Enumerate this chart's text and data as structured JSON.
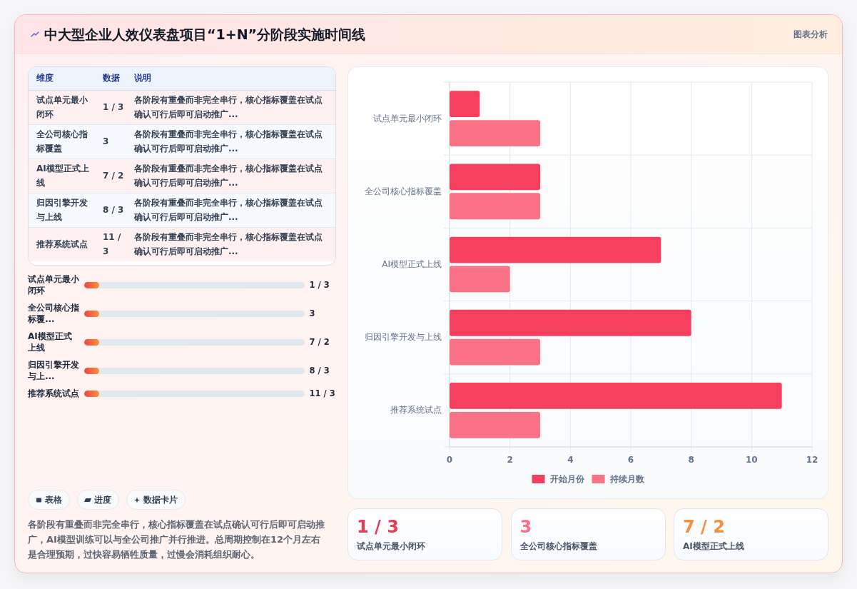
{
  "chart_data": [
    {
      "type": "other",
      "title": "中大型企业人效仪表盘项目“1+N”分阶段实施时间线",
      "annotations": [
        "图表分析"
      ]
    },
    {
      "type": "other",
      "categories": [
        "试点单元最小闭环",
        "全公司核心指标覆盖",
        "AI模型正式上线",
        "归因引擎开发与上线",
        "推荐系统试点"
      ],
      "value_labels": [
        "1 / 3",
        "3",
        "7 / 2",
        "8 / 3",
        "11 / 3"
      ],
      "annotations": [
        "维度",
        "数据",
        "说明",
        "各阶段有重叠而非完全串行，核心指标覆盖在试点确认可行后即可启动推广...",
        "各阶段有重叠而非完全串行，核心指标覆盖在试点确认可行后即可启动推广...",
        "各阶段有重叠而非完全串行，核心指标覆盖在试点确认可行后即可启动推广...",
        "各阶段有重叠而非完全串行，核心指标覆盖在试点确认可行后即可启动推广...",
        "各阶段有重叠而非完全串行，核心指标覆盖在试点确认可行后即可启动推广..."
      ]
    },
    {
      "type": "bar",
      "orientation": "horizontal",
      "categories": [
        "试点单元最小闭环",
        "全公司核心指标覆盖",
        "AI模型正式上线",
        "归因引擎开发与上线",
        "推荐系统试点"
      ],
      "series": [
        {
          "name": "开始月份",
          "color": "#f43f5e",
          "values": [
            1,
            3,
            7,
            8,
            11
          ]
        },
        {
          "name": "持续月数",
          "color": "#fb7185",
          "values": [
            3,
            3,
            2,
            3,
            3
          ]
        }
      ],
      "xlim": [
        0,
        12
      ],
      "xticks": [
        0,
        2,
        4,
        6,
        8,
        10,
        12
      ],
      "grid": true,
      "legend": "bottom"
    },
    {
      "type": "other",
      "categories": [
        "试点单元最小闭环",
        "全公司核心指标覆...",
        "AI模型正式上线",
        "归因引擎开发与上...",
        "推荐系统试点"
      ],
      "value_labels": [
        "1 / 3",
        "3",
        "7 / 2",
        "8 / 3",
        "11 / 3"
      ]
    },
    {
      "type": "other",
      "annotations": [
        "表格",
        "进度",
        "数据卡片",
        "各阶段有重叠而非完全串行，核心指标覆盖在试点确认可行后即可启动推广，AI模型训练可以与全公司推广并行推进。总周期控制在12个月左右是合理预期，过快容易牺牲质量，过慢会消耗组织耐心。"
      ]
    },
    {
      "type": "other",
      "categories": [
        "试点单元最小闭环",
        "全公司核心指标覆盖",
        "AI模型正式上线"
      ],
      "value_labels": [
        "1 / 3",
        "3",
        "7 / 2"
      ]
    }
  ]
}
